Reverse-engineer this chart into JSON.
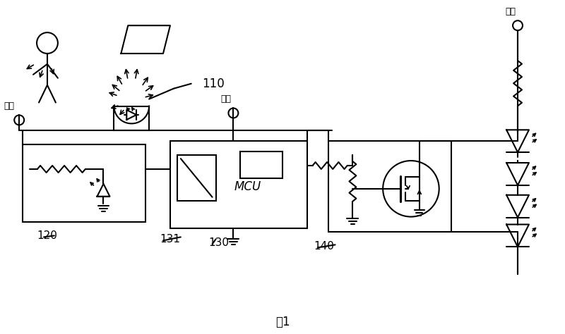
{
  "background_color": "#ffffff",
  "line_color": "#000000",
  "labels": {
    "power_left": "电源",
    "power_mid": "电源",
    "power_right": "电源",
    "label_110": "110",
    "label_120": "120",
    "label_130": "130",
    "label_131": "131",
    "label_140": "140",
    "mcu": "MCU",
    "fig": "图1"
  },
  "fig_width": 8.0,
  "fig_height": 4.74
}
